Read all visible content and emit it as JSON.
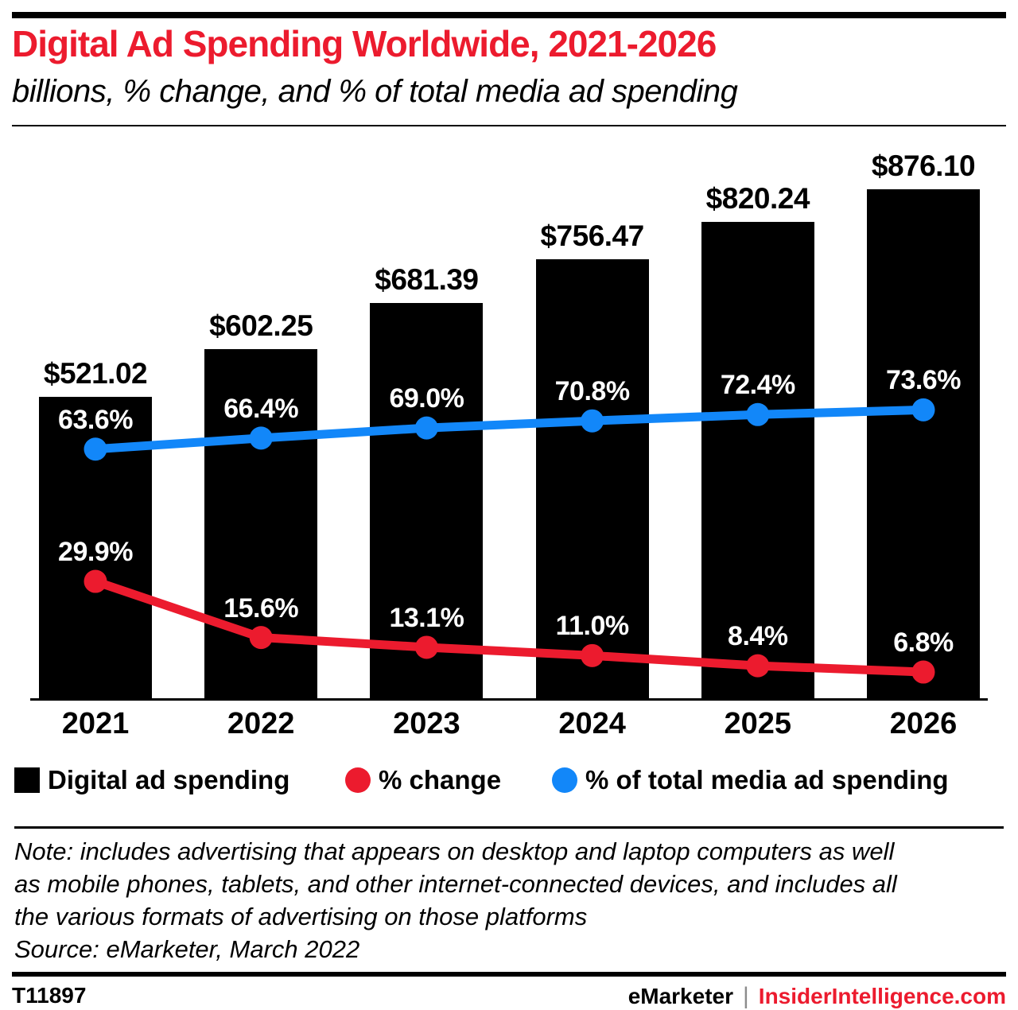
{
  "colors": {
    "accent_red": "#ec1b2e",
    "line_blue": "#1287f9",
    "bar_black": "#000000",
    "pipe_gray": "#8c8c8c"
  },
  "header": {
    "title": "Digital Ad Spending Worldwide, 2021-2026",
    "subtitle": "billions, % change, and % of total media ad spending"
  },
  "chart_data": {
    "type": "bar",
    "title": "Digital Ad Spending Worldwide, 2021-2026",
    "subtitle": "billions, % change, and % of total media ad spending",
    "categories": [
      "2021",
      "2022",
      "2023",
      "2024",
      "2025",
      "2026"
    ],
    "grid": false,
    "legend_position": "bottom",
    "value_axis": "hidden (data labels shown instead)",
    "series": [
      {
        "name": "Digital ad spending",
        "type": "bar",
        "unit": "billions of US dollars",
        "color": "#000000",
        "values": [
          521.02,
          602.25,
          681.39,
          756.47,
          820.24,
          876.1
        ],
        "labels": [
          "$521.02",
          "$602.25",
          "$681.39",
          "$756.47",
          "$820.24",
          "$876.10"
        ]
      },
      {
        "name": "% change",
        "type": "line",
        "unit": "percent",
        "color": "#ec1b2e",
        "values": [
          29.9,
          15.6,
          13.1,
          11.0,
          8.4,
          6.8
        ],
        "labels": [
          "29.9%",
          "15.6%",
          "13.1%",
          "11.0%",
          "8.4%",
          "6.8%"
        ]
      },
      {
        "name": "% of total media ad spending",
        "type": "line",
        "unit": "percent",
        "color": "#1287f9",
        "values": [
          63.6,
          66.4,
          69.0,
          70.8,
          72.4,
          73.6
        ],
        "labels": [
          "63.6%",
          "66.4%",
          "69.0%",
          "70.8%",
          "72.4%",
          "73.6%"
        ]
      }
    ]
  },
  "legend": {
    "items": [
      {
        "label": "Digital ad spending",
        "swatch": "square",
        "color": "#000000"
      },
      {
        "label": "% change",
        "swatch": "circle",
        "color": "#ec1b2e"
      },
      {
        "label": "% of total media ad spending",
        "swatch": "circle",
        "color": "#1287f9"
      }
    ]
  },
  "note": {
    "lines": [
      "Note: includes advertising that appears on desktop and laptop computers as well",
      "as mobile phones, tablets, and other internet-connected devices, and includes all",
      "the various formats of advertising on those platforms",
      "Source: eMarketer, March 2022"
    ]
  },
  "footer": {
    "id": "T11897",
    "brand": "eMarketer",
    "separator": "|",
    "site": "InsiderIntelligence.com"
  }
}
